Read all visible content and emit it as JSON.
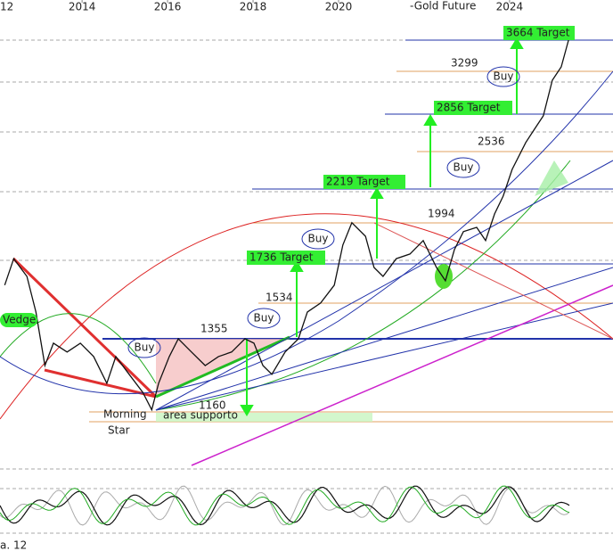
{
  "chart_data": {
    "type": "line",
    "title": "-Gold Future",
    "footer": "a. 12",
    "x": [
      2012.19,
      2012.4,
      2012.71,
      2012.92,
      2013.13,
      2013.33,
      2013.65,
      2013.96,
      2014.27,
      2014.58,
      2014.79,
      2015.1,
      2015.42,
      2015.63,
      2015.79,
      2016.04,
      2016.25,
      2016.56,
      2016.88,
      2017.19,
      2017.5,
      2017.81,
      2018.02,
      2018.23,
      2018.44,
      2018.75,
      2019.06,
      2019.27,
      2019.58,
      2019.9,
      2020.1,
      2020.31,
      2020.63,
      2020.83,
      2021.04,
      2021.35,
      2021.67,
      2021.98,
      2022.29,
      2022.5,
      2022.71,
      2022.92,
      2023.23,
      2023.44,
      2023.65,
      2023.85,
      2024.06,
      2024.38,
      2024.58,
      2024.79,
      2025.0,
      2025.21,
      2025.38,
      2025.42
    ],
    "values": [
      1702,
      1845,
      1748,
      1569,
      1333,
      1427,
      1389,
      1427,
      1370,
      1263,
      1370,
      1298,
      1229,
      1165,
      1263,
      1370,
      1446,
      1389,
      1333,
      1370,
      1389,
      1446,
      1427,
      1333,
      1298,
      1389,
      1446,
      1569,
      1612,
      1702,
      1923,
      2058,
      1975,
      1796,
      1748,
      1845,
      1871,
      1949,
      1796,
      1725,
      1896,
      2003,
      2029,
      1949,
      2114,
      2231,
      2420,
      2626,
      2733,
      2848,
      3173,
      3305,
      3585,
      3682
    ],
    "color": "#111111",
    "log_scale": true,
    "xlim": [
      2012.08,
      2026.42
    ],
    "ylim": [
      976,
      4050
    ],
    "xticks": [
      {
        "value": 2012,
        "label": "12"
      },
      2014,
      2016,
      2018,
      2020,
      2024
    ],
    "annotations": [
      "3664 Target",
      "3299",
      "Buy",
      "2856 Target",
      "2536",
      "Buy",
      "2219 Target",
      "1994",
      "Buy",
      "1736 Target",
      "1534",
      "Buy",
      "1355",
      "Buy",
      "Vedge",
      "1160",
      "Morning",
      "area supporto",
      "Star"
    ]
  }
}
